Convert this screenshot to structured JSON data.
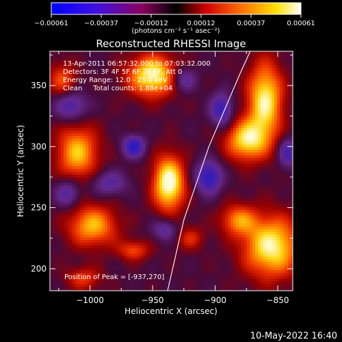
{
  "colorbar": {
    "ticks": [
      "-0.00061",
      "-0.00037",
      "-0.00012",
      "0.00012",
      "0.00037",
      "0.00061"
    ],
    "units_label": "(photons cm⁻² s⁻¹ asec⁻²)",
    "range": [
      -0.00061,
      0.00061
    ]
  },
  "chart_data": {
    "type": "heatmap",
    "title": "Reconstructed RHESSI Image",
    "xlabel": "Heliocentric X (arcsec)",
    "ylabel": "Heliocentric Y (arcsec)",
    "xlim": [
      -1032,
      -838
    ],
    "ylim": [
      182,
      378
    ],
    "x_ticks": [
      -1000,
      -950,
      -900,
      -850
    ],
    "y_ticks": [
      200,
      250,
      300,
      350
    ],
    "x_tick_labels": [
      "−1000",
      "−950",
      "−900",
      "−850"
    ],
    "y_tick_labels": [
      "200",
      "250",
      "300",
      "350"
    ],
    "colormap": "blue-purple-red-orange-yellow-white",
    "annotations": [
      "13-Apr-2011 06:57:32.000 to 07:03:32.000",
      "Detectors: 3F 4F 5F 6F 7F 8F, Att 0",
      "Energy Range: 12.0 - 25.0 keV",
      "Clean     Total counts: 1.88e+04"
    ],
    "peak_label": "Position of Peak = [-937,270]",
    "peak_position": [
      -937,
      270
    ],
    "sources": [
      {
        "x": -937,
        "y": 270,
        "sx": 9,
        "sy": 16,
        "amp": 1.0
      },
      {
        "x": -950,
        "y": 358,
        "sx": 14,
        "sy": 12,
        "amp": 0.92
      },
      {
        "x": -860,
        "y": 338,
        "sx": 10,
        "sy": 22,
        "amp": 0.88
      },
      {
        "x": -875,
        "y": 305,
        "sx": 12,
        "sy": 12,
        "amp": 0.8
      },
      {
        "x": -855,
        "y": 218,
        "sx": 16,
        "sy": 18,
        "amp": 0.9
      },
      {
        "x": -882,
        "y": 240,
        "sx": 10,
        "sy": 9,
        "amp": 0.55
      },
      {
        "x": -1010,
        "y": 295,
        "sx": 12,
        "sy": 16,
        "amp": 0.72
      },
      {
        "x": -998,
        "y": 235,
        "sx": 14,
        "sy": 12,
        "amp": 0.7
      },
      {
        "x": -1022,
        "y": 355,
        "sx": 8,
        "sy": 10,
        "amp": 0.45
      },
      {
        "x": -965,
        "y": 215,
        "sx": 9,
        "sy": 6,
        "amp": 0.45
      },
      {
        "x": -920,
        "y": 225,
        "sx": 8,
        "sy": 7,
        "amp": 0.35
      },
      {
        "x": -1005,
        "y": 192,
        "sx": 10,
        "sy": 7,
        "amp": 0.4
      },
      {
        "x": -965,
        "y": 300,
        "sx": 6,
        "sy": 6,
        "amp": -0.8
      },
      {
        "x": -985,
        "y": 270,
        "sx": 10,
        "sy": 7,
        "amp": -0.45
      },
      {
        "x": -905,
        "y": 275,
        "sx": 7,
        "sy": 9,
        "amp": -0.8
      },
      {
        "x": -895,
        "y": 330,
        "sx": 6,
        "sy": 9,
        "amp": -0.7
      },
      {
        "x": -842,
        "y": 295,
        "sx": 5,
        "sy": 8,
        "amp": -0.6
      },
      {
        "x": -1015,
        "y": 333,
        "sx": 9,
        "sy": 8,
        "amp": -0.55
      },
      {
        "x": -1018,
        "y": 262,
        "sx": 7,
        "sy": 8,
        "amp": -0.5
      },
      {
        "x": -940,
        "y": 232,
        "sx": 7,
        "sy": 6,
        "amp": -0.45
      },
      {
        "x": -925,
        "y": 355,
        "sx": 7,
        "sy": 7,
        "amp": -0.5
      }
    ],
    "limb": [
      [
        -938,
        182
      ],
      [
        -925,
        240
      ],
      [
        -905,
        300
      ],
      [
        -880,
        360
      ],
      [
        -872,
        378
      ]
    ]
  },
  "footer": {
    "timestamp": "10-May-2022 16:40"
  }
}
